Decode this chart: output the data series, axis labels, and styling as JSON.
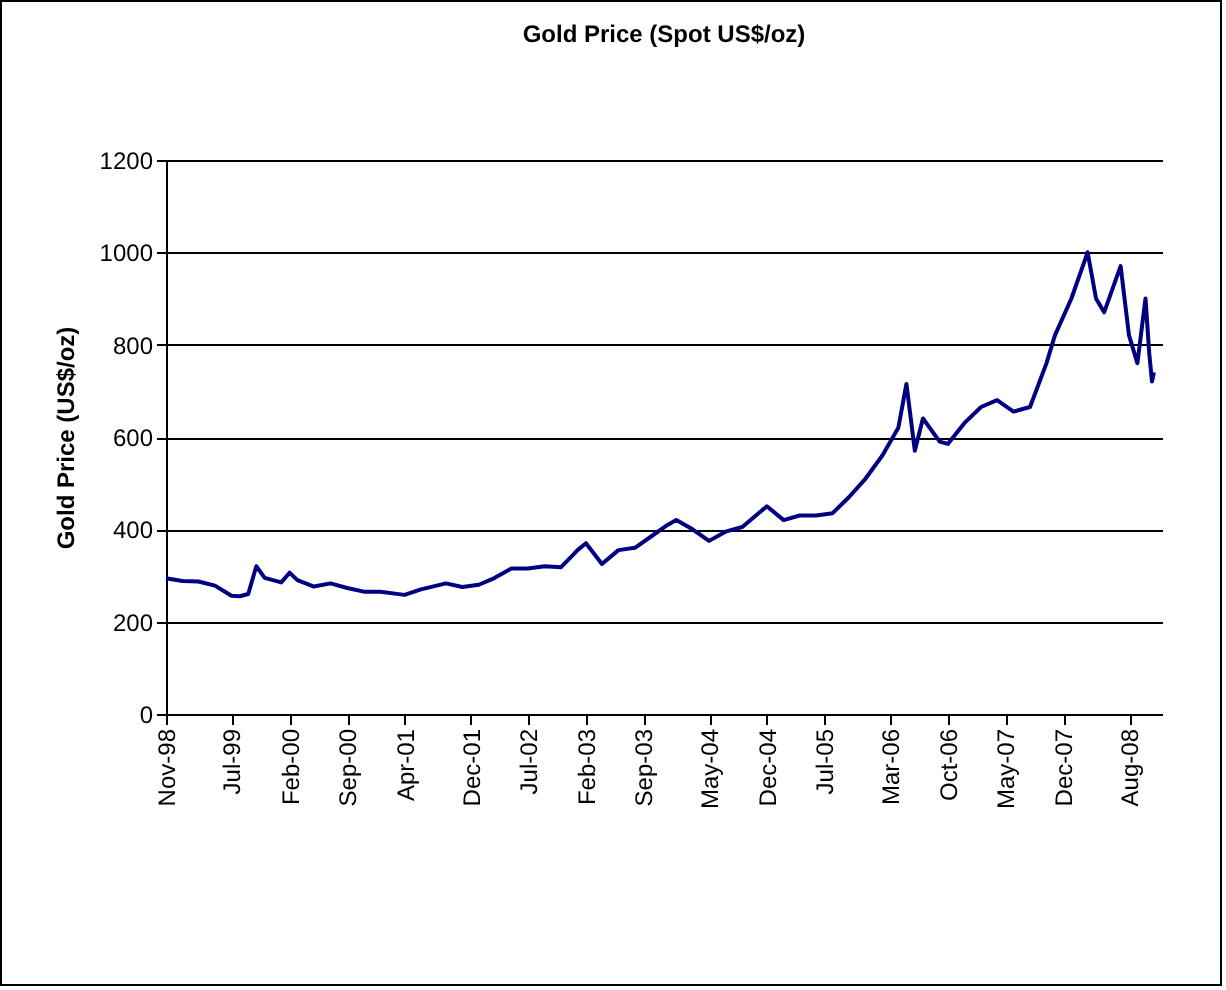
{
  "chart_data": {
    "type": "line",
    "title": "Gold Price (Spot US$/oz)",
    "ylabel": "Gold Price (US$/oz)",
    "x": [
      "1998-11",
      "1999-01",
      "1999-03",
      "1999-05",
      "1999-07",
      "1999-08",
      "1999-09",
      "1999-10",
      "1999-11",
      "2000-01",
      "2000-02",
      "2000-03",
      "2000-05",
      "2000-07",
      "2000-09",
      "2000-11",
      "2001-01",
      "2001-04",
      "2001-06",
      "2001-09",
      "2001-11",
      "2002-01",
      "2002-03",
      "2002-05",
      "2002-07",
      "2002-09",
      "2002-11",
      "2003-01",
      "2003-02",
      "2003-04",
      "2003-06",
      "2003-08",
      "2003-10",
      "2003-12",
      "2004-01",
      "2004-03",
      "2004-05",
      "2004-07",
      "2004-09",
      "2004-12",
      "2005-02",
      "2005-04",
      "2005-06",
      "2005-08",
      "2005-10",
      "2005-12",
      "2006-02",
      "2006-04",
      "2006-05",
      "2006-06",
      "2006-07",
      "2006-09",
      "2006-10",
      "2006-12",
      "2007-02",
      "2007-04",
      "2007-06",
      "2007-08",
      "2007-10",
      "2007-11",
      "2008-01",
      "2008-03",
      "2008-04",
      "2008-05",
      "2008-07",
      "2008-08",
      "2008-09",
      "2008-10",
      "2008-10-15",
      "2008-10-25",
      "2008-11"
    ],
    "series": [
      {
        "color": "#000080",
        "values": [
          294,
          288,
          287,
          278,
          256,
          255,
          260,
          320,
          295,
          285,
          306,
          290,
          276,
          283,
          273,
          265,
          265,
          258,
          270,
          283,
          275,
          280,
          295,
          315,
          315,
          320,
          318,
          355,
          370,
          325,
          355,
          360,
          385,
          410,
          420,
          400,
          375,
          395,
          405,
          450,
          420,
          430,
          430,
          435,
          470,
          510,
          560,
          620,
          715,
          570,
          640,
          590,
          585,
          630,
          665,
          680,
          655,
          665,
          760,
          820,
          900,
          1000,
          900,
          870,
          970,
          820,
          760,
          900,
          780,
          720,
          740
        ]
      }
    ],
    "xlim": [
      "1998-11",
      "2008-12"
    ],
    "xticks": [
      {
        "value": "1998-11",
        "label": "Nov-98"
      },
      {
        "value": "1999-07",
        "label": "Jul-99"
      },
      {
        "value": "2000-02",
        "label": "Feb-00"
      },
      {
        "value": "2000-09",
        "label": "Sep-00"
      },
      {
        "value": "2001-04",
        "label": "Apr-01"
      },
      {
        "value": "2001-12",
        "label": "Dec-01"
      },
      {
        "value": "2002-07",
        "label": "Jul-02"
      },
      {
        "value": "2003-02",
        "label": "Feb-03"
      },
      {
        "value": "2003-09",
        "label": "Sep-03"
      },
      {
        "value": "2004-05",
        "label": "May-04"
      },
      {
        "value": "2004-12",
        "label": "Dec-04"
      },
      {
        "value": "2005-07",
        "label": "Jul-05"
      },
      {
        "value": "2006-03",
        "label": "Mar-06"
      },
      {
        "value": "2006-10",
        "label": "Oct-06"
      },
      {
        "value": "2007-05",
        "label": "May-07"
      },
      {
        "value": "2007-12",
        "label": "Dec-07"
      },
      {
        "value": "2008-08",
        "label": "Aug-08"
      }
    ],
    "ylim": [
      0,
      1200
    ],
    "yticks": [
      0,
      200,
      400,
      600,
      800,
      1000,
      1200
    ],
    "grid": "y",
    "marker": "none",
    "line_style": "solid"
  }
}
